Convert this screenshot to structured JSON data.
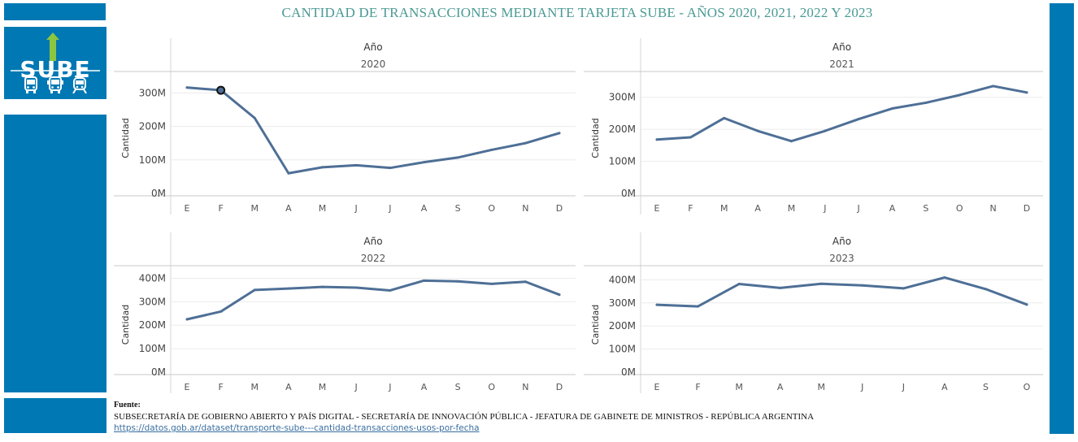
{
  "title": "CANTIDAD DE TRANSACCIONES MEDIANTE TARJETA SUBE - AÑOS 2020, 2021, 2022 Y 2023",
  "logo": {
    "text": "SUBE",
    "icons": [
      "bus-icon",
      "trolleybus-icon",
      "train-icon"
    ]
  },
  "colors": {
    "brand_blue": "#0078b4",
    "line": "#4e6f96",
    "title": "#4a9a94",
    "grid": "#ececec"
  },
  "facet_label": "Año",
  "chart_data": [
    {
      "type": "line",
      "facet": "2020",
      "ylabel": "Cantidad",
      "x": [
        "E",
        "F",
        "M",
        "A",
        "M",
        "J",
        "J",
        "A",
        "S",
        "O",
        "N",
        "D"
      ],
      "yticks": [
        "0M",
        "100M",
        "200M",
        "300M"
      ],
      "ylim": [
        0,
        330
      ],
      "series": [
        {
          "values": [
            316,
            308,
            225,
            60,
            78,
            84,
            76,
            93,
            107,
            130,
            150,
            180
          ]
        }
      ],
      "highlight_index": 1
    },
    {
      "type": "line",
      "facet": "2021",
      "ylabel": "Cantidad",
      "x": [
        "E",
        "F",
        "M",
        "A",
        "M",
        "J",
        "J",
        "A",
        "S",
        "O",
        "N",
        "D"
      ],
      "yticks": [
        "0M",
        "100M",
        "200M",
        "300M"
      ],
      "ylim": [
        0,
        345
      ],
      "series": [
        {
          "values": [
            168,
            175,
            235,
            195,
            163,
            195,
            232,
            265,
            283,
            307,
            335,
            315
          ]
        }
      ]
    },
    {
      "type": "line",
      "facet": "2022",
      "ylabel": "Cantidad",
      "x": [
        "E",
        "F",
        "M",
        "A",
        "M",
        "J",
        "J",
        "A",
        "S",
        "O",
        "N",
        "D"
      ],
      "yticks": [
        "0M",
        "100M",
        "200M",
        "300M",
        "400M"
      ],
      "ylim": [
        0,
        405
      ],
      "series": [
        {
          "values": [
            225,
            258,
            350,
            356,
            363,
            360,
            348,
            390,
            387,
            376,
            385,
            330
          ]
        }
      ]
    },
    {
      "type": "line",
      "facet": "2023",
      "ylabel": "Cantidad",
      "x": [
        "E",
        "F",
        "M",
        "A",
        "M",
        "J",
        "J",
        "A",
        "S",
        "O"
      ],
      "yticks": [
        "0M",
        "100M",
        "200M",
        "300M",
        "400M"
      ],
      "ylim": [
        0,
        412
      ],
      "series": [
        {
          "values": [
            292,
            285,
            382,
            365,
            383,
            376,
            363,
            410,
            360,
            293
          ]
        }
      ]
    }
  ],
  "source": {
    "label": "Fuente:",
    "text": "SUBSECRETARÍA DE GOBIERNO ABIERTO Y PAÍS DIGITAL - SECRETARÍA DE INNOVACIÓN PÚBLICA - JEFATURA DE GABINETE DE MINISTROS - REPÚBLICA ARGENTINA",
    "link": "https://datos.gob.ar/dataset/transporte-sube---cantidad-transacciones-usos-por-fecha"
  }
}
